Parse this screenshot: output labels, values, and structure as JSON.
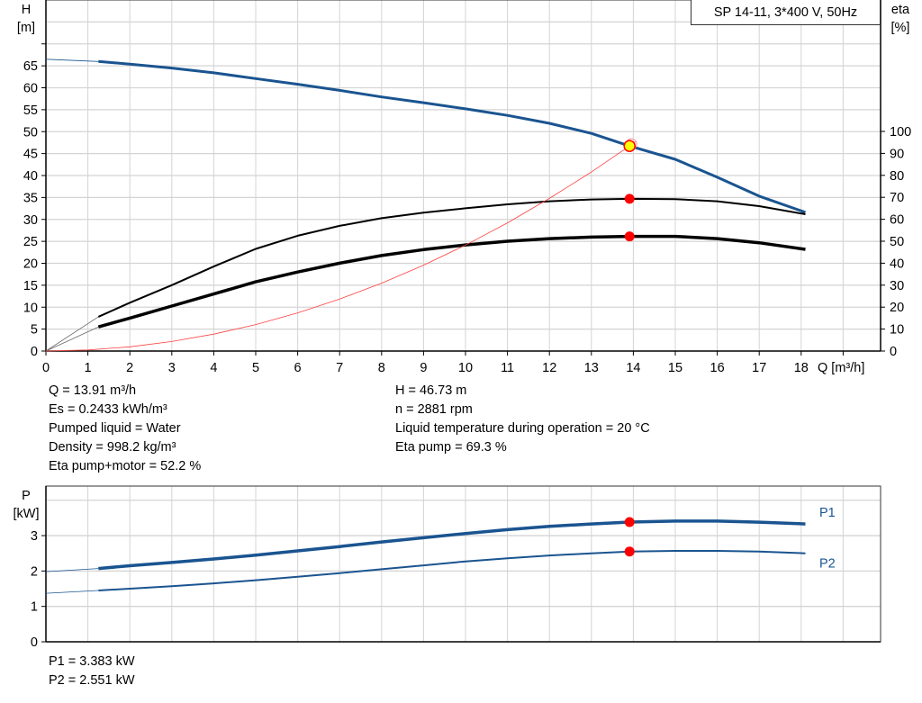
{
  "chart_data": [
    {
      "type": "line",
      "title": "SP 14-11, 3*400 V, 50Hz",
      "xlabel": "Q [m³/h]",
      "ylabel": "H\n[m]",
      "ylabel_lines": [
        "H",
        "[m]"
      ],
      "y2label_lines": [
        "eta",
        "[%]"
      ],
      "xlim": [
        0,
        19.9
      ],
      "ylim": [
        0,
        80
      ],
      "y2lim": [
        0,
        164
      ],
      "xticks": [
        0,
        1,
        2,
        3,
        4,
        5,
        6,
        7,
        8,
        9,
        10,
        11,
        12,
        13,
        14,
        15,
        16,
        17,
        18
      ],
      "yticks": [
        0,
        5,
        10,
        15,
        20,
        25,
        30,
        35,
        40,
        45,
        50,
        55,
        60,
        65
      ],
      "y2ticks": [
        0,
        10,
        20,
        30,
        40,
        50,
        60,
        70,
        80,
        90,
        100
      ],
      "grid": true,
      "series": [
        {
          "key": "H",
          "axis": "left",
          "color": "#1a5490",
          "width": 3,
          "extrapolated": [
            [
              0,
              66.5
            ],
            [
              1.25,
              66.0
            ]
          ],
          "points": [
            [
              1.25,
              66.0
            ],
            [
              2,
              65.4
            ],
            [
              3,
              64.5
            ],
            [
              4,
              63.4
            ],
            [
              5,
              62.1
            ],
            [
              6,
              60.8
            ],
            [
              7,
              59.4
            ],
            [
              8,
              57.9
            ],
            [
              9,
              56.6
            ],
            [
              10,
              55.2
            ],
            [
              11,
              53.7
            ],
            [
              12,
              51.9
            ],
            [
              13,
              49.6
            ],
            [
              13.91,
              46.73
            ],
            [
              15,
              43.7
            ],
            [
              16,
              39.6
            ],
            [
              17,
              35.3
            ],
            [
              18.1,
              31.6
            ]
          ]
        },
        {
          "key": "eta_pump",
          "axis": "right",
          "color": "#000000",
          "width": 2,
          "extrapolated": [
            [
              0,
              0
            ],
            [
              1.25,
              15.6
            ]
          ],
          "points": [
            [
              1.25,
              15.6
            ],
            [
              2,
              22
            ],
            [
              3,
              30
            ],
            [
              4,
              38.5
            ],
            [
              5,
              46.5
            ],
            [
              6,
              52.5
            ],
            [
              7,
              57
            ],
            [
              8,
              60.5
            ],
            [
              9,
              63
            ],
            [
              10,
              65
            ],
            [
              11,
              66.8
            ],
            [
              12,
              68.2
            ],
            [
              13,
              69
            ],
            [
              13.91,
              69.3
            ],
            [
              15,
              69.2
            ],
            [
              16,
              68.2
            ],
            [
              17,
              66
            ],
            [
              18.1,
              62.3
            ]
          ]
        },
        {
          "key": "eta_pump_motor",
          "axis": "right",
          "color": "#000000",
          "width": 3.5,
          "extrapolated": [
            [
              0,
              0
            ],
            [
              1.25,
              11
            ]
          ],
          "points": [
            [
              1.25,
              11
            ],
            [
              2,
              15
            ],
            [
              3,
              20.5
            ],
            [
              4,
              26
            ],
            [
              5,
              31.5
            ],
            [
              6,
              36
            ],
            [
              7,
              40
            ],
            [
              8,
              43.5
            ],
            [
              9,
              46.2
            ],
            [
              10,
              48.3
            ],
            [
              11,
              50
            ],
            [
              12,
              51.2
            ],
            [
              13,
              51.9
            ],
            [
              13.91,
              52.2
            ],
            [
              15,
              52.2
            ],
            [
              16,
              51.2
            ],
            [
              17,
              49.3
            ],
            [
              18.1,
              46.3
            ]
          ]
        },
        {
          "key": "system_curve",
          "axis": "left",
          "color": "#ff4040",
          "width": 0.8,
          "points": [
            [
              0,
              0
            ],
            [
              1,
              0.24
            ],
            [
              2,
              0.97
            ],
            [
              3,
              2.17
            ],
            [
              4,
              3.86
            ],
            [
              5,
              6.04
            ],
            [
              6,
              8.69
            ],
            [
              7,
              11.83
            ],
            [
              8,
              15.46
            ],
            [
              9,
              19.56
            ],
            [
              10,
              24.15
            ],
            [
              11,
              29.22
            ],
            [
              12,
              34.78
            ],
            [
              13,
              40.81
            ],
            [
              13.91,
              46.73
            ],
            [
              14.05,
              47.7
            ]
          ]
        }
      ],
      "operating_point": {
        "Q": 13.91,
        "H": 46.73,
        "eta_pump": 69.3,
        "eta_pump_motor": 52.2,
        "fill": "#ffff00",
        "stroke": "#ff0000"
      },
      "marker_color": "#ff0000"
    },
    {
      "type": "line",
      "ylabel_lines": [
        "P",
        "[kW]"
      ],
      "xlim": [
        0,
        19.9
      ],
      "ylim": [
        0,
        4.4
      ],
      "yticks": [
        0,
        1,
        2,
        3
      ],
      "grid": true,
      "series": [
        {
          "name": "P1",
          "color": "#1a5490",
          "width": 3.5,
          "extrapolated": [
            [
              0,
              1.98
            ],
            [
              1.25,
              2.07
            ]
          ],
          "points": [
            [
              1.25,
              2.07
            ],
            [
              2,
              2.15
            ],
            [
              3,
              2.24
            ],
            [
              4,
              2.34
            ],
            [
              5,
              2.45
            ],
            [
              6,
              2.57
            ],
            [
              7,
              2.69
            ],
            [
              8,
              2.82
            ],
            [
              9,
              2.94
            ],
            [
              10,
              3.06
            ],
            [
              11,
              3.17
            ],
            [
              12,
              3.26
            ],
            [
              13,
              3.33
            ],
            [
              13.91,
              3.383
            ],
            [
              15,
              3.41
            ],
            [
              16,
              3.41
            ],
            [
              17,
              3.38
            ],
            [
              18.1,
              3.33
            ]
          ]
        },
        {
          "name": "P2",
          "color": "#1a5490",
          "width": 2,
          "extrapolated": [
            [
              0,
              1.37
            ],
            [
              1.25,
              1.45
            ]
          ],
          "points": [
            [
              1.25,
              1.45
            ],
            [
              2,
              1.5
            ],
            [
              3,
              1.57
            ],
            [
              4,
              1.65
            ],
            [
              5,
              1.74
            ],
            [
              6,
              1.84
            ],
            [
              7,
              1.94
            ],
            [
              8,
              2.05
            ],
            [
              9,
              2.16
            ],
            [
              10,
              2.27
            ],
            [
              11,
              2.36
            ],
            [
              12,
              2.44
            ],
            [
              13,
              2.5
            ],
            [
              13.91,
              2.551
            ],
            [
              15,
              2.57
            ],
            [
              16,
              2.57
            ],
            [
              17,
              2.55
            ],
            [
              18.1,
              2.5
            ]
          ]
        }
      ],
      "operating_point": {
        "Q": 13.91,
        "P1": 3.383,
        "P2": 2.551
      }
    }
  ],
  "info_left": [
    "Q = 13.91 m³/h",
    "Es = 0.2433 kWh/m³",
    "Pumped liquid = Water",
    "Density = 998.2 kg/m³",
    "Eta pump+motor = 52.2 %"
  ],
  "info_right": [
    "H = 46.73 m",
    "n = 2881 rpm",
    "Liquid temperature during operation = 20 °C",
    "Eta pump = 69.3 %"
  ],
  "power_info": [
    "P1 = 3.383 kW",
    "P2 = 2.551 kW"
  ]
}
